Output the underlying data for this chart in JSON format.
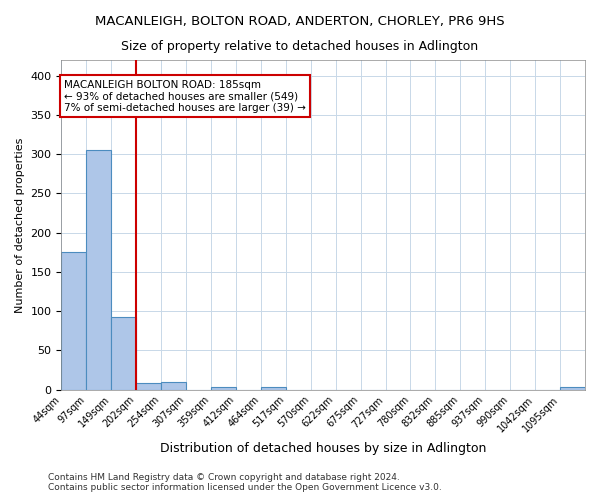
{
  "title": "MACANLEIGH, BOLTON ROAD, ANDERTON, CHORLEY, PR6 9HS",
  "subtitle": "Size of property relative to detached houses in Adlington",
  "xlabel": "Distribution of detached houses by size in Adlington",
  "ylabel": "Number of detached properties",
  "bin_labels": [
    "44sqm",
    "97sqm",
    "149sqm",
    "202sqm",
    "254sqm",
    "307sqm",
    "359sqm",
    "412sqm",
    "464sqm",
    "517sqm",
    "570sqm",
    "622sqm",
    "675sqm",
    "727sqm",
    "780sqm",
    "832sqm",
    "885sqm",
    "937sqm",
    "990sqm",
    "1042sqm",
    "1095sqm"
  ],
  "counts": [
    175,
    305,
    93,
    9,
    10,
    0,
    3,
    0,
    3,
    0,
    0,
    0,
    0,
    0,
    0,
    0,
    0,
    0,
    0,
    0,
    3
  ],
  "bar_color": "#aec6e8",
  "bar_edge_color": "#4c8cbf",
  "property_bin": 3,
  "marker_line_color": "#cc0000",
  "annotation_text": "MACANLEIGH BOLTON ROAD: 185sqm\n← 93% of detached houses are smaller (549)\n7% of semi-detached houses are larger (39) →",
  "annotation_box_color": "#ffffff",
  "annotation_box_edge_color": "#cc0000",
  "ylim": [
    0,
    420
  ],
  "yticks": [
    0,
    50,
    100,
    150,
    200,
    250,
    300,
    350,
    400
  ],
  "footer_text": "Contains HM Land Registry data © Crown copyright and database right 2024.\nContains public sector information licensed under the Open Government Licence v3.0.",
  "background_color": "#ffffff",
  "grid_color": "#c8d8e8",
  "n_bins": 21
}
